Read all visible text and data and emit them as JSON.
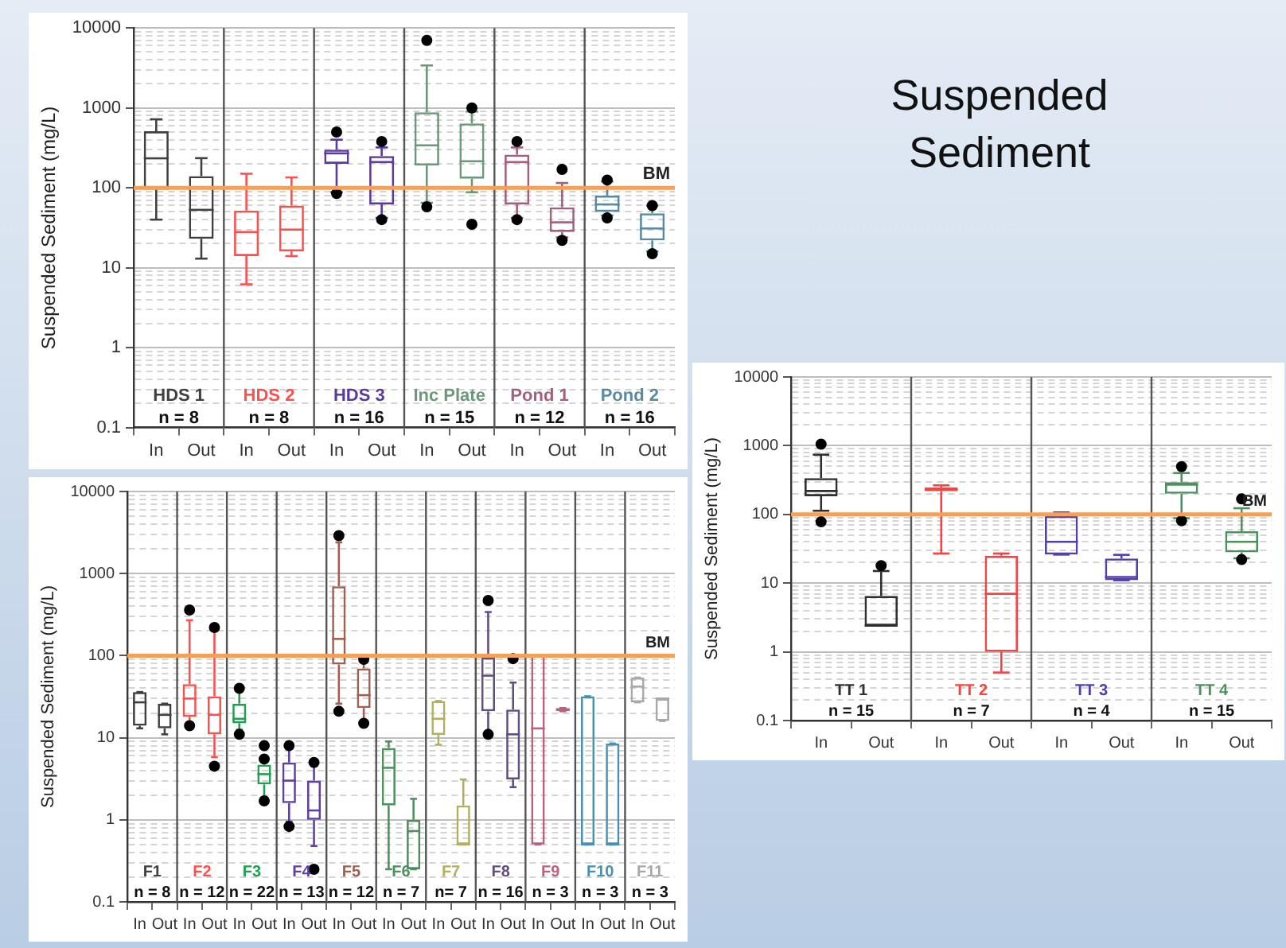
{
  "chart_data": [
    {
      "type": "box",
      "ylabel": "Suspended Sediment (mg/L)",
      "categories": [
        "In",
        "Out",
        "In",
        "Out",
        "In",
        "Out",
        "In",
        "Out",
        "In",
        "Out",
        "In",
        "Out"
      ],
      "log": true,
      "grid": "y",
      "ylim": [
        0.1,
        10000
      ],
      "yticks": [
        0.1,
        {
          "value": 0.2,
          "label": null
        },
        {
          "value": 0.3,
          "label": null
        },
        {
          "value": 0.4,
          "label": null
        },
        {
          "value": 0.5,
          "label": null
        },
        {
          "value": 0.6,
          "label": null
        },
        {
          "value": 0.7,
          "label": null
        },
        {
          "value": 0.8,
          "label": null
        },
        {
          "value": 0.9,
          "label": null
        },
        1,
        {
          "value": 2,
          "label": null
        },
        {
          "value": 3,
          "label": null
        },
        {
          "value": 4,
          "label": null
        },
        {
          "value": 5,
          "label": null
        },
        {
          "value": 6,
          "label": null
        },
        {
          "value": 7,
          "label": null
        },
        {
          "value": 8,
          "label": null
        },
        {
          "value": 9,
          "label": null
        },
        10,
        {
          "value": 20,
          "label": null
        },
        {
          "value": 30,
          "label": null
        },
        {
          "value": 40,
          "label": null
        },
        {
          "value": 50,
          "label": null
        },
        {
          "value": 60,
          "label": null
        },
        {
          "value": 70,
          "label": null
        },
        {
          "value": 80,
          "label": null
        },
        {
          "value": 90,
          "label": null
        },
        100,
        {
          "value": 200,
          "label": null
        },
        {
          "value": 300,
          "label": null
        },
        {
          "value": 400,
          "label": null
        },
        {
          "value": 500,
          "label": null
        },
        {
          "value": 600,
          "label": null
        },
        {
          "value": 700,
          "label": null
        },
        {
          "value": 800,
          "label": null
        },
        {
          "value": 900,
          "label": null
        },
        1000,
        {
          "value": 2000,
          "label": null
        },
        {
          "value": 3000,
          "label": null
        },
        {
          "value": 4000,
          "label": null
        },
        {
          "value": 5000,
          "label": null
        },
        {
          "value": 6000,
          "label": null
        },
        {
          "value": 7000,
          "label": null
        },
        {
          "value": 8000,
          "label": null
        },
        {
          "value": 9000,
          "label": null
        },
        10000
      ],
      "ref_lines": [
        {
          "axis": "y",
          "value": 100,
          "label": "BM",
          "color": "#f5a05a"
        }
      ],
      "annotations": [
        "n = 8",
        "n = 8",
        "n = 16",
        "n = 15",
        "n = 12",
        "n = 16"
      ],
      "series": [
        {
          "name": "HDS 1",
          "color": "#404040",
          "boxes": [
            {
              "low": 40,
              "q1": 95,
              "median": 234,
              "q3": 510,
              "high": 720
            },
            {
              "low": 13,
              "q1": 23,
              "median": 53,
              "q3": 140,
              "high": 235
            },
            null,
            null,
            null,
            null,
            null,
            null,
            null,
            null,
            null,
            null
          ]
        },
        {
          "name": "HDS 2",
          "color": "#ff5050",
          "boxes": [
            null,
            null,
            {
              "low": 6.2,
              "q1": 14,
              "median": 28,
              "q3": 52,
              "high": 150
            },
            {
              "low": 14,
              "q1": 16,
              "median": 30,
              "q3": 60,
              "high": 135
            },
            null,
            null,
            null,
            null,
            null,
            null,
            null,
            null
          ]
        },
        {
          "name": "HDS 3",
          "color": "#5a3a9a",
          "boxes": [
            null,
            null,
            null,
            null,
            {
              "low": 88,
              "q1": 200,
              "median": 270,
              "q3": 300,
              "high": 400,
              "outliers": [
                500,
                85
              ]
            },
            {
              "low": 42,
              "q1": 62,
              "median": 210,
              "q3": 250,
              "high": 320,
              "outliers": [
                380,
                40
              ]
            },
            null,
            null,
            null,
            null,
            null,
            null
          ]
        },
        {
          "name": "Inc Plate",
          "color": "#6a9a7a",
          "boxes": [
            null,
            null,
            null,
            null,
            null,
            null,
            {
              "low": 65,
              "q1": 190,
              "median": 340,
              "q3": 880,
              "high": 3400,
              "outliers": [
                7000,
                58
              ]
            },
            {
              "low": 88,
              "q1": 130,
              "median": 215,
              "q3": 640,
              "high": 900,
              "outliers": [
                1000,
                35
              ]
            },
            null,
            null,
            null,
            null
          ]
        },
        {
          "name": "Pond 1",
          "color": "#a06080",
          "boxes": [
            null,
            null,
            null,
            null,
            null,
            null,
            null,
            null,
            {
              "low": 42,
              "q1": 62,
              "median": 210,
              "q3": 260,
              "high": 320,
              "outliers": [
                380,
                40
              ]
            },
            {
              "low": 24,
              "q1": 28,
              "median": 37,
              "q3": 57,
              "high": 115,
              "outliers": [
                170,
                22
              ]
            },
            null,
            null
          ]
        },
        {
          "name": "Pond 2",
          "color": "#5a8aa0",
          "boxes": [
            null,
            null,
            null,
            null,
            null,
            null,
            null,
            null,
            null,
            null,
            {
              "low": 45,
              "q1": 50,
              "median": 62,
              "q3": 80,
              "high": 120,
              "outliers": [
                125,
                42
              ]
            },
            {
              "low": 16,
              "q1": 22,
              "median": 31,
              "q3": 48,
              "high": 60,
              "outliers": [
                60,
                15
              ]
            }
          ]
        }
      ]
    },
    {
      "type": "other",
      "title": "Suspended Sediment"
    },
    {
      "type": "box",
      "ylabel": "Suspended Sediment (mg/L)",
      "categories": [
        "In",
        "Out",
        "In",
        "Out",
        "In",
        "Out",
        "In",
        "Out",
        "In",
        "Out",
        "In",
        "Out",
        "In",
        "Out",
        "In",
        "Out",
        "In",
        "Out",
        "In",
        "Out",
        "In",
        "Out"
      ],
      "log": true,
      "grid": "y",
      "ylim": [
        0.1,
        10000
      ],
      "yticks": [
        0.1,
        {
          "value": 0.2,
          "label": null
        },
        {
          "value": 0.3,
          "label": null
        },
        {
          "value": 0.4,
          "label": null
        },
        {
          "value": 0.5,
          "label": null
        },
        {
          "value": 0.6,
          "label": null
        },
        {
          "value": 0.7,
          "label": null
        },
        {
          "value": 0.8,
          "label": null
        },
        {
          "value": 0.9,
          "label": null
        },
        1,
        {
          "value": 2,
          "label": null
        },
        {
          "value": 3,
          "label": null
        },
        {
          "value": 4,
          "label": null
        },
        {
          "value": 5,
          "label": null
        },
        {
          "value": 6,
          "label": null
        },
        {
          "value": 7,
          "label": null
        },
        {
          "value": 8,
          "label": null
        },
        {
          "value": 9,
          "label": null
        },
        10,
        {
          "value": 20,
          "label": null
        },
        {
          "value": 30,
          "label": null
        },
        {
          "value": 40,
          "label": null
        },
        {
          "value": 50,
          "label": null
        },
        {
          "value": 60,
          "label": null
        },
        {
          "value": 70,
          "label": null
        },
        {
          "value": 80,
          "label": null
        },
        {
          "value": 90,
          "label": null
        },
        100,
        {
          "value": 200,
          "label": null
        },
        {
          "value": 300,
          "label": null
        },
        {
          "value": 400,
          "label": null
        },
        {
          "value": 500,
          "label": null
        },
        {
          "value": 600,
          "label": null
        },
        {
          "value": 700,
          "label": null
        },
        {
          "value": 800,
          "label": null
        },
        {
          "value": 900,
          "label": null
        },
        1000,
        {
          "value": 2000,
          "label": null
        },
        {
          "value": 3000,
          "label": null
        },
        {
          "value": 4000,
          "label": null
        },
        {
          "value": 5000,
          "label": null
        },
        {
          "value": 6000,
          "label": null
        },
        {
          "value": 7000,
          "label": null
        },
        {
          "value": 8000,
          "label": null
        },
        {
          "value": 9000,
          "label": null
        },
        10000
      ],
      "ref_lines": [
        {
          "axis": "y",
          "value": 100,
          "label": "BM",
          "color": "#f5a05a"
        }
      ],
      "annotations": [
        "n = 8",
        "n = 12",
        "n = 22",
        "n = 13",
        "n = 12",
        "n = 7",
        "n= 7",
        "n = 16",
        "n = 3",
        "n = 3",
        "n = 3"
      ],
      "series": [
        {
          "name": "F1",
          "color": "#404040",
          "boxes": [
            {
              "low": 13,
              "q1": 14,
              "median": 27,
              "q3": 36,
              "high": 36
            },
            {
              "low": 11,
              "q1": 13,
              "median": 19,
              "q3": 26,
              "high": 26
            },
            null,
            null,
            null,
            null,
            null,
            null,
            null,
            null,
            null,
            null,
            null,
            null,
            null,
            null,
            null,
            null,
            null,
            null,
            null,
            null
          ]
        },
        {
          "name": "F2",
          "color": "#ff5050",
          "boxes": [
            null,
            null,
            {
              "low": 14,
              "q1": 18,
              "median": 30,
              "q3": 45,
              "high": 270,
              "outliers": [
                360,
                14
              ]
            },
            {
              "low": 5.8,
              "q1": 11,
              "median": 19,
              "q3": 32,
              "high": 210,
              "outliers": [
                220,
                4.5
              ]
            },
            null,
            null,
            null,
            null,
            null,
            null,
            null,
            null,
            null,
            null,
            null,
            null,
            null,
            null,
            null,
            null,
            null,
            null
          ]
        },
        {
          "name": "F3",
          "color": "#20a050",
          "boxes": [
            null,
            null,
            null,
            null,
            {
              "low": 12.5,
              "q1": 15,
              "median": 17,
              "q3": 26,
              "high": 38,
              "outliers": [
                40,
                11
              ]
            },
            {
              "low": 1.8,
              "q1": 2.7,
              "median": 3.6,
              "q3": 4.7,
              "high": 5.5,
              "outliers": [
                8,
                5.5,
                1.7
              ]
            },
            null,
            null,
            null,
            null,
            null,
            null,
            null,
            null,
            null,
            null,
            null,
            null,
            null,
            null,
            null,
            null
          ]
        },
        {
          "name": "F4",
          "color": "#6040a0",
          "boxes": [
            null,
            null,
            null,
            null,
            null,
            null,
            {
              "low": 0.95,
              "q1": 1.6,
              "median": 3,
              "q3": 5,
              "high": 7.5,
              "outliers": [
                8,
                0.83
              ]
            },
            {
              "low": 0.48,
              "q1": 1,
              "median": 1.3,
              "q3": 3,
              "high": 4.5,
              "outliers": [
                5,
                0.25
              ]
            },
            null,
            null,
            null,
            null,
            null,
            null,
            null,
            null,
            null,
            null,
            null,
            null,
            null,
            null
          ]
        },
        {
          "name": "F5",
          "color": "#a06050",
          "boxes": [
            null,
            null,
            null,
            null,
            null,
            null,
            null,
            null,
            {
              "low": 26,
              "q1": 78,
              "median": 160,
              "q3": 700,
              "high": 2400,
              "outliers": [
                2900,
                21
              ]
            },
            {
              "low": 15,
              "q1": 23,
              "median": 33,
              "q3": 70,
              "high": 90,
              "outliers": [
                90,
                15
              ]
            },
            null,
            null,
            null,
            null,
            null,
            null,
            null,
            null,
            null,
            null,
            null,
            null
          ]
        },
        {
          "name": "F6",
          "color": "#509060",
          "boxes": [
            null,
            null,
            null,
            null,
            null,
            null,
            null,
            null,
            null,
            null,
            {
              "low": 0.25,
              "q1": 1.5,
              "median": 4.3,
              "q3": 7.5,
              "high": 9
            },
            {
              "low": 0.25,
              "q1": 0.25,
              "median": 0.73,
              "q3": 1,
              "high": 1.8
            },
            null,
            null,
            null,
            null,
            null,
            null,
            null,
            null,
            null,
            null
          ]
        },
        {
          "name": "F7",
          "color": "#b0b060",
          "boxes": [
            null,
            null,
            null,
            null,
            null,
            null,
            null,
            null,
            null,
            null,
            null,
            null,
            {
              "low": 8.2,
              "q1": 10.8,
              "median": 17,
              "q3": 28,
              "high": 28
            },
            {
              "low": 0.5,
              "q1": 0.5,
              "median": 0.5,
              "q3": 1.5,
              "high": 3.1
            },
            null,
            null,
            null,
            null,
            null,
            null,
            null,
            null
          ]
        },
        {
          "name": "F8",
          "color": "#605080",
          "boxes": [
            null,
            null,
            null,
            null,
            null,
            null,
            null,
            null,
            null,
            null,
            null,
            null,
            null,
            null,
            {
              "low": 12,
              "q1": 21,
              "median": 57,
              "q3": 95,
              "high": 340,
              "outliers": [
                470,
                11
              ]
            },
            {
              "low": 2.5,
              "q1": 3.1,
              "median": 11,
              "q3": 22,
              "high": 47,
              "outliers": [
                92
              ]
            },
            null,
            null,
            null,
            null,
            null,
            null
          ]
        },
        {
          "name": "F9",
          "color": "#c06080",
          "boxes": [
            null,
            null,
            null,
            null,
            null,
            null,
            null,
            null,
            null,
            null,
            null,
            null,
            null,
            null,
            null,
            null,
            {
              "low": 0.5,
              "q1": 0.5,
              "median": 13,
              "q3": 100,
              "high": 100
            },
            {
              "low": 21,
              "q1": 21,
              "median": 22,
              "q3": 23,
              "high": 23
            },
            null,
            null,
            null,
            null
          ]
        },
        {
          "name": "F10",
          "color": "#4a90b0",
          "boxes": [
            null,
            null,
            null,
            null,
            null,
            null,
            null,
            null,
            null,
            null,
            null,
            null,
            null,
            null,
            null,
            null,
            null,
            null,
            {
              "low": 0.5,
              "q1": 0.5,
              "median": 0.5,
              "q3": 32,
              "high": 32
            },
            {
              "low": 0.5,
              "q1": 0.5,
              "median": 0.5,
              "q3": 8.5,
              "high": 8.5
            },
            null,
            null
          ]
        },
        {
          "name": "F11",
          "color": "#a8a8a8",
          "boxes": [
            null,
            null,
            null,
            null,
            null,
            null,
            null,
            null,
            null,
            null,
            null,
            null,
            null,
            null,
            null,
            null,
            null,
            null,
            null,
            null,
            {
              "low": 27,
              "q1": 27,
              "median": 42,
              "q3": 54,
              "high": 54
            },
            {
              "low": 16,
              "q1": 16,
              "median": 30,
              "q3": 30,
              "high": 30
            }
          ]
        }
      ]
    },
    {
      "type": "box",
      "ylabel": "Suspended Sediment (mg/L)",
      "categories": [
        "In",
        "Out",
        "In",
        "Out",
        "In",
        "Out",
        "In",
        "Out"
      ],
      "log": true,
      "grid": "y",
      "ylim": [
        0.1,
        10000
      ],
      "yticks": [
        0.1,
        {
          "value": 0.2,
          "label": null
        },
        {
          "value": 0.3,
          "label": null
        },
        {
          "value": 0.4,
          "label": null
        },
        {
          "value": 0.5,
          "label": null
        },
        {
          "value": 0.6,
          "label": null
        },
        {
          "value": 0.7,
          "label": null
        },
        {
          "value": 0.8,
          "label": null
        },
        {
          "value": 0.9,
          "label": null
        },
        1,
        {
          "value": 2,
          "label": null
        },
        {
          "value": 3,
          "label": null
        },
        {
          "value": 4,
          "label": null
        },
        {
          "value": 5,
          "label": null
        },
        {
          "value": 6,
          "label": null
        },
        {
          "value": 7,
          "label": null
        },
        {
          "value": 8,
          "label": null
        },
        {
          "value": 9,
          "label": null
        },
        10,
        {
          "value": 20,
          "label": null
        },
        {
          "value": 30,
          "label": null
        },
        {
          "value": 40,
          "label": null
        },
        {
          "value": 50,
          "label": null
        },
        {
          "value": 60,
          "label": null
        },
        {
          "value": 70,
          "label": null
        },
        {
          "value": 80,
          "label": null
        },
        {
          "value": 90,
          "label": null
        },
        100,
        {
          "value": 200,
          "label": null
        },
        {
          "value": 300,
          "label": null
        },
        {
          "value": 400,
          "label": null
        },
        {
          "value": 500,
          "label": null
        },
        {
          "value": 600,
          "label": null
        },
        {
          "value": 700,
          "label": null
        },
        {
          "value": 800,
          "label": null
        },
        {
          "value": 900,
          "label": null
        },
        1000,
        {
          "value": 2000,
          "label": null
        },
        {
          "value": 3000,
          "label": null
        },
        {
          "value": 4000,
          "label": null
        },
        {
          "value": 5000,
          "label": null
        },
        {
          "value": 6000,
          "label": null
        },
        {
          "value": 7000,
          "label": null
        },
        {
          "value": 8000,
          "label": null
        },
        {
          "value": 9000,
          "label": null
        },
        10000
      ],
      "ref_lines": [
        {
          "axis": "y",
          "value": 100,
          "label": "BM",
          "color": "#f5a05a"
        }
      ],
      "annotations": [
        "n = 15",
        "n = 7",
        "n = 4",
        "n = 15"
      ],
      "series": [
        {
          "name": "TT 1",
          "color": "#303030",
          "boxes": [
            {
              "low": 113,
              "q1": 184,
              "median": 219,
              "q3": 337,
              "high": 740,
              "outliers": [
                1050,
                78
              ]
            },
            {
              "low": 2.4,
              "q1": 2.4,
              "median": 2.4,
              "q3": 6.5,
              "high": 15,
              "outliers": [
                18
              ]
            },
            null,
            null,
            null,
            null,
            null,
            null
          ]
        },
        {
          "name": "TT 2",
          "color": "#ff4040",
          "boxes": [
            null,
            null,
            {
              "low": 27,
              "q1": 219,
              "median": 230,
              "q3": 247,
              "high": 265
            },
            {
              "low": 0.5,
              "q1": 1,
              "median": 7,
              "q3": 25,
              "high": 27
            },
            null,
            null,
            null,
            null
          ]
        },
        {
          "name": "TT 3",
          "color": "#5040b0",
          "boxes": [
            null,
            null,
            null,
            null,
            {
              "low": 26,
              "q1": 26,
              "median": 40,
              "q3": 95,
              "high": 107
            },
            {
              "low": 11,
              "q1": 11,
              "median": 12.3,
              "q3": 22.8,
              "high": 25.8
            },
            null,
            null
          ]
        },
        {
          "name": "TT 4",
          "color": "#509060",
          "boxes": [
            null,
            null,
            null,
            null,
            null,
            null,
            {
              "low": 88,
              "q1": 200,
              "median": 270,
              "q3": 294,
              "high": 400,
              "outliers": [
                495,
                81
              ]
            },
            {
              "low": 23,
              "q1": 28,
              "median": 40,
              "q3": 57,
              "high": 123,
              "outliers": [
                168,
                22
              ]
            }
          ]
        }
      ]
    }
  ]
}
